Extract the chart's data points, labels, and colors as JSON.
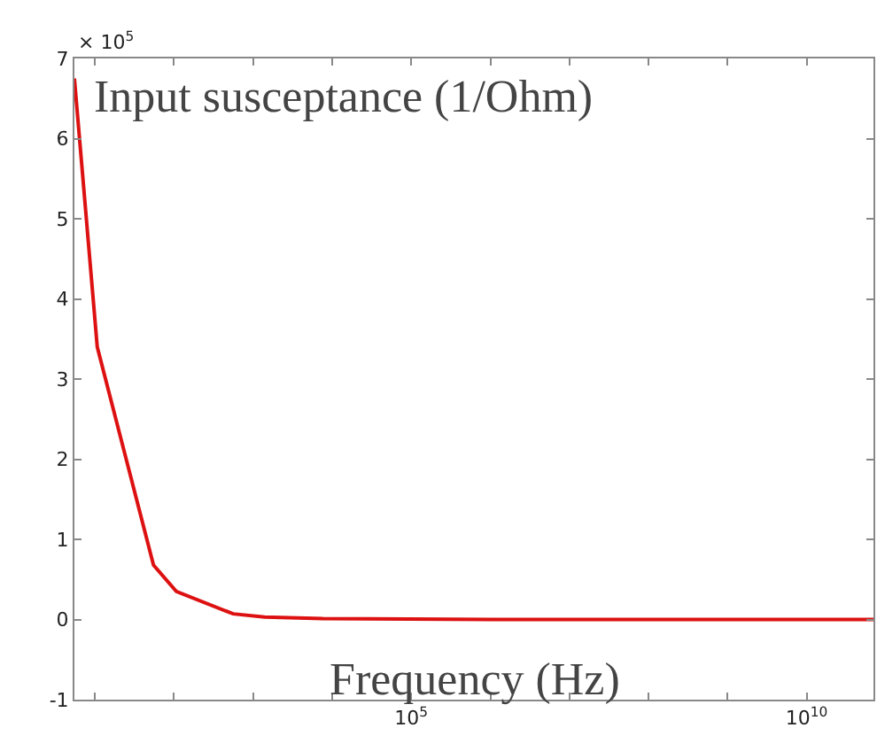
{
  "chart_data": {
    "type": "line",
    "xlabel": "Frequency (Hz)",
    "ylabel": "Input susceptance (1/Ohm)",
    "annotations": [
      "× 10$^{5}$"
    ],
    "x": [
      5.5,
      10.7,
      55,
      107,
      560,
      1400,
      7600,
      1000000,
      100000000,
      70000000000
    ],
    "series": [
      {
        "color": "#dd1111",
        "values": [
          6.75,
          3.4,
          0.68,
          0.35,
          0.07,
          0.03,
          0.01,
          0,
          0,
          0
        ]
      }
    ],
    "log": "x",
    "xlim": [
      5.5,
      70000000000
    ],
    "xticks": [
      {
        "value": 10,
        "label": null
      },
      {
        "value": 100,
        "label": null
      },
      {
        "value": 1000,
        "label": null
      },
      {
        "value": 10000,
        "label": null
      },
      {
        "value": 100000,
        "label": "10$^{5}$"
      },
      {
        "value": 1000000,
        "label": null
      },
      {
        "value": 10000000,
        "label": null
      },
      {
        "value": 100000000,
        "label": null
      },
      {
        "value": 1000000000,
        "label": null
      },
      {
        "value": 10000000000,
        "label": "10$^{10}$"
      }
    ],
    "ylim": [
      -1,
      7
    ],
    "yticks": [
      -1,
      0,
      1,
      2,
      3,
      4,
      5,
      6,
      7
    ],
    "grid": false,
    "legend": false,
    "marker": "none",
    "line_style": "solid"
  }
}
